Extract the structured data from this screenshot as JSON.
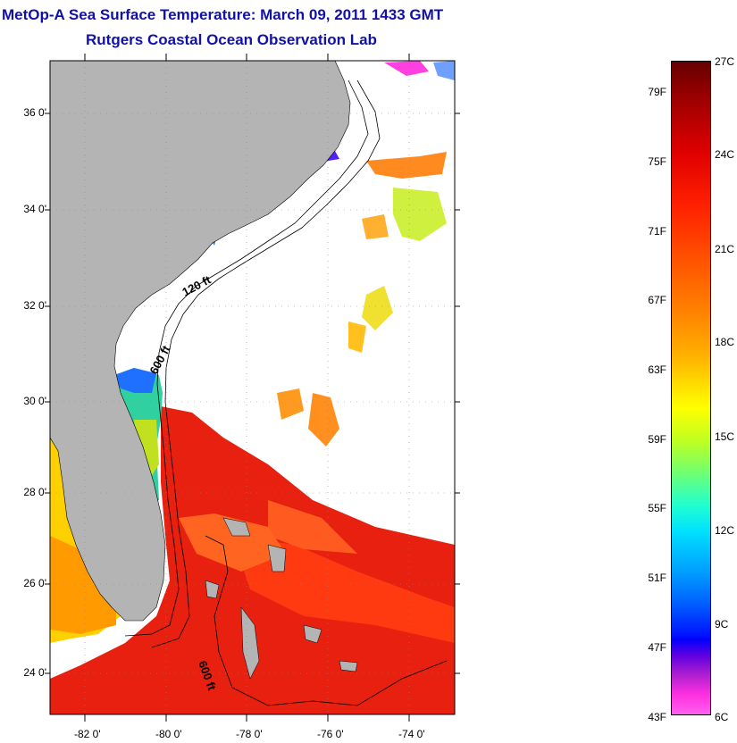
{
  "title": {
    "line1": "MetOp-A Sea Surface Temperature:  March 09, 2011 1433 GMT",
    "line2": "Rutgers Coastal Ocean Observation Lab"
  },
  "axes": {
    "lat_labels": [
      "36 0'",
      "34 0'",
      "32 0'",
      "30 0'",
      "28 0'",
      "26 0'",
      "24 0'"
    ],
    "lon_labels": [
      "-82 0'",
      "-80 0'",
      "-78 0'",
      "-76 0'",
      "-74 0'"
    ]
  },
  "contours": {
    "label_120": "120 ft",
    "label_600": "600 ft",
    "label_600b": "600 ft"
  },
  "colorbar": {
    "f_labels": [
      "79F",
      "75F",
      "71F",
      "67F",
      "63F",
      "59F",
      "55F",
      "51F",
      "47F",
      "43F"
    ],
    "c_labels": [
      "27C",
      "24C",
      "21C",
      "18C",
      "15C",
      "12C",
      "9C",
      "6C"
    ]
  },
  "colors": {
    "title": "#1111aa",
    "land": "#b4b4b4",
    "ocean": "#ffffff"
  }
}
